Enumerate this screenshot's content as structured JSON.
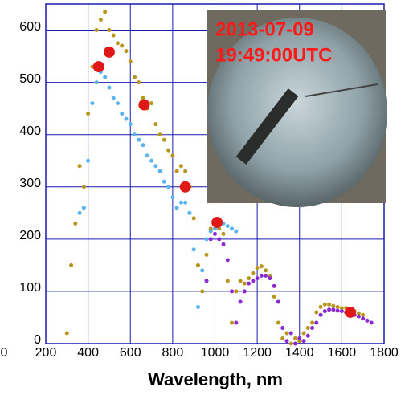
{
  "chart_data": {
    "type": "scatter",
    "x_label": "Wavelength, nm",
    "xlim": [
      200,
      1800
    ],
    "xticks": [
      0,
      200,
      400,
      600,
      800,
      1000,
      1200,
      1400,
      1600,
      1800
    ],
    "ylim": [
      0,
      650
    ],
    "yticks": [
      0,
      100,
      200,
      300,
      400,
      500,
      600
    ],
    "grid": true,
    "grid_color": "#1a1ab0",
    "annotations": [
      "2013-07-09",
      "19:49:00UTC"
    ],
    "annotation_color": "#ff1a1a",
    "series": [
      {
        "color": "#b8961c",
        "marker_size": 2.5,
        "x": [
          300,
          320,
          340,
          360,
          380,
          400,
          420,
          440,
          460,
          480,
          500,
          520,
          540,
          560,
          580,
          600,
          620,
          640,
          660,
          680,
          700,
          720,
          740,
          760,
          780,
          800,
          820,
          840,
          860,
          880,
          900,
          920,
          940,
          960,
          980,
          1000,
          1020,
          1040,
          1060,
          1080,
          1100,
          1120,
          1140,
          1160,
          1180,
          1200,
          1220,
          1240,
          1260,
          1280,
          1300,
          1320,
          1340,
          1360,
          1380,
          1400,
          1420,
          1440,
          1460,
          1480,
          1500,
          1520,
          1540,
          1560,
          1580,
          1600,
          1620,
          1640,
          1660,
          1680,
          1700
        ],
        "values": [
          20,
          150,
          230,
          340,
          300,
          440,
          530,
          600,
          620,
          635,
          600,
          590,
          575,
          570,
          560,
          540,
          510,
          500,
          470,
          450,
          460,
          420,
          400,
          390,
          370,
          360,
          330,
          340,
          330,
          300,
          240,
          150,
          100,
          170,
          220,
          230,
          220,
          210,
          120,
          40,
          100,
          120,
          115,
          125,
          135,
          145,
          148,
          140,
          130,
          90,
          40,
          10,
          20,
          0,
          10,
          5,
          20,
          30,
          40,
          60,
          70,
          75,
          75,
          72,
          70,
          68,
          68,
          65,
          62,
          58,
          55
        ]
      },
      {
        "color": "#5ab4f0",
        "marker_size": 2.5,
        "x": [
          360,
          380,
          400,
          420,
          440,
          460,
          480,
          500,
          520,
          540,
          560,
          580,
          600,
          620,
          640,
          660,
          680,
          700,
          720,
          740,
          760,
          780,
          800,
          820,
          840,
          860,
          880,
          900,
          920,
          940,
          960,
          980,
          1000,
          1020,
          1040,
          1060,
          1080,
          1100
        ],
        "values": [
          250,
          260,
          350,
          460,
          500,
          520,
          510,
          490,
          470,
          460,
          440,
          430,
          420,
          400,
          390,
          380,
          360,
          350,
          340,
          330,
          310,
          300,
          280,
          260,
          270,
          270,
          250,
          180,
          70,
          140,
          200,
          215,
          220,
          225,
          230,
          225,
          220,
          215
        ]
      },
      {
        "color": "#8a2ad0",
        "marker_size": 2.5,
        "x": [
          960,
          980,
          1000,
          1020,
          1040,
          1060,
          1080,
          1100,
          1120,
          1140,
          1160,
          1180,
          1200,
          1220,
          1240,
          1260,
          1280,
          1300,
          1320,
          1340,
          1360,
          1380,
          1400,
          1420,
          1440,
          1460,
          1480,
          1500,
          1520,
          1540,
          1560,
          1580,
          1600,
          1620,
          1640,
          1660,
          1680,
          1700,
          1720,
          1740
        ],
        "values": [
          120,
          200,
          210,
          200,
          190,
          160,
          100,
          40,
          80,
          100,
          115,
          120,
          125,
          130,
          130,
          125,
          110,
          80,
          30,
          5,
          20,
          0,
          10,
          5,
          15,
          30,
          40,
          55,
          62,
          65,
          65,
          63,
          62,
          60,
          58,
          55,
          52,
          48,
          44,
          40
        ]
      },
      {
        "color": "#e01818",
        "marker_size": 7,
        "x": [
          450,
          500,
          665,
          860,
          1010,
          1640
        ],
        "values": [
          530,
          558,
          457,
          300,
          232,
          60
        ]
      }
    ]
  }
}
